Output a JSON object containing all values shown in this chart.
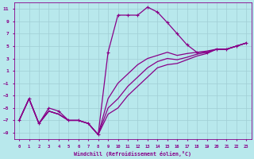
{
  "xlabel": "Windchill (Refroidissement éolien,°C)",
  "bg_color": "#b8e8ec",
  "grid_color": "#a0ced4",
  "line_color": "#880088",
  "xlim": [
    -0.5,
    23.5
  ],
  "ylim": [
    -10,
    12
  ],
  "xticks": [
    0,
    1,
    2,
    3,
    4,
    5,
    6,
    7,
    8,
    9,
    10,
    11,
    12,
    13,
    14,
    15,
    16,
    17,
    18,
    19,
    20,
    21,
    22,
    23
  ],
  "yticks": [
    -9,
    -7,
    -5,
    -3,
    -1,
    1,
    3,
    5,
    7,
    9,
    11
  ],
  "series1_x": [
    0,
    1,
    2,
    3,
    4,
    5,
    6,
    7,
    8,
    9,
    10,
    11,
    12,
    13,
    14,
    15,
    16,
    17,
    18,
    19,
    20,
    21,
    22,
    23
  ],
  "series1_y": [
    -7,
    -3.5,
    -7.5,
    -5,
    -5.5,
    -7,
    -7,
    -7.5,
    -9.3,
    4,
    10,
    10,
    10,
    11.3,
    10.5,
    8.8,
    7,
    5.2,
    4,
    4,
    4.5,
    4.5,
    5,
    5.5
  ],
  "series2_x": [
    0,
    1,
    2,
    3,
    4,
    5,
    6,
    7,
    8,
    9,
    10,
    11,
    12,
    13,
    14,
    15,
    16,
    17,
    18,
    19,
    20,
    21,
    22,
    23
  ],
  "series2_y": [
    -7,
    -3.5,
    -7.5,
    -5.5,
    -6,
    -7,
    -7,
    -7.5,
    -9.3,
    -3.5,
    -1.0,
    0.5,
    2.0,
    3.0,
    3.5,
    4.0,
    3.5,
    3.8,
    4.0,
    4.2,
    4.5,
    4.5,
    5,
    5.5
  ],
  "series3_x": [
    0,
    1,
    2,
    3,
    4,
    5,
    6,
    7,
    8,
    9,
    10,
    11,
    12,
    13,
    14,
    15,
    16,
    17,
    18,
    19,
    20,
    21,
    22,
    23
  ],
  "series3_y": [
    -7,
    -3.5,
    -7.5,
    -5.5,
    -6,
    -7,
    -7,
    -7.5,
    -9.3,
    -5.0,
    -3.5,
    -1.5,
    0.0,
    1.5,
    2.5,
    3.0,
    2.8,
    3.2,
    3.7,
    4.0,
    4.5,
    4.5,
    5,
    5.5
  ],
  "series4_x": [
    0,
    1,
    2,
    3,
    4,
    5,
    6,
    7,
    8,
    9,
    10,
    11,
    12,
    13,
    14,
    15,
    16,
    17,
    18,
    19,
    20,
    21,
    22,
    23
  ],
  "series4_y": [
    -7,
    -3.5,
    -7.5,
    -5.5,
    -6,
    -7,
    -7,
    -7.5,
    -9.3,
    -6.0,
    -5.0,
    -3.0,
    -1.5,
    0.0,
    1.5,
    2.0,
    2.2,
    2.8,
    3.4,
    3.8,
    4.5,
    4.5,
    5,
    5.5
  ]
}
